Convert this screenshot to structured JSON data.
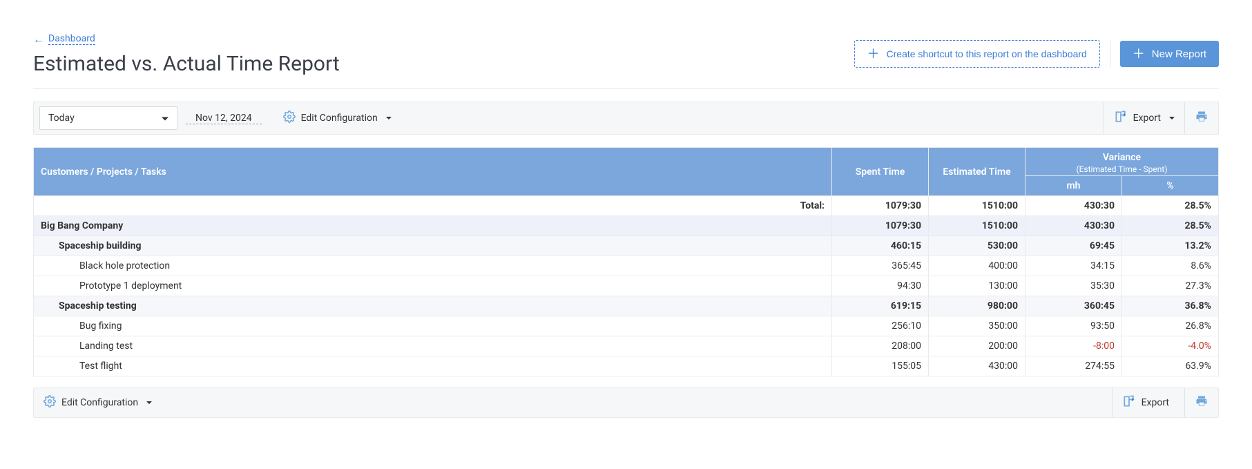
{
  "breadcrumb": {
    "label": "Dashboard"
  },
  "page_title": "Estimated vs. Actual Time Report",
  "actions": {
    "shortcut_label": "Create shortcut to this report on the dashboard",
    "new_report_label": "New Report"
  },
  "toolbar": {
    "range_selected": "Today",
    "date_label": "Nov 12, 2024",
    "edit_config_label": "Edit Configuration",
    "export_label": "Export"
  },
  "table": {
    "headers": {
      "name": "Customers / Projects / Tasks",
      "spent": "Spent Time",
      "estimated": "Estimated Time",
      "variance": "Variance",
      "variance_sub": "(Estimated Time - Spent)",
      "mh": "mh",
      "pct": "%"
    },
    "total": {
      "label": "Total:",
      "spent": "1079:30",
      "estimated": "1510:00",
      "mh": "430:30",
      "pct": "28.5%"
    },
    "rows": [
      {
        "type": "customer",
        "name": "Big Bang Company",
        "spent": "1079:30",
        "estimated": "1510:00",
        "mh": "430:30",
        "pct": "28.5%"
      },
      {
        "type": "project",
        "name": "Spaceship building",
        "spent": "460:15",
        "estimated": "530:00",
        "mh": "69:45",
        "pct": "13.2%"
      },
      {
        "type": "task",
        "name": "Black hole protection",
        "spent": "365:45",
        "estimated": "400:00",
        "mh": "34:15",
        "pct": "8.6%"
      },
      {
        "type": "task",
        "name": "Prototype 1 deployment",
        "spent": "94:30",
        "estimated": "130:00",
        "mh": "35:30",
        "pct": "27.3%"
      },
      {
        "type": "project",
        "name": "Spaceship testing",
        "spent": "619:15",
        "estimated": "980:00",
        "mh": "360:45",
        "pct": "36.8%"
      },
      {
        "type": "task",
        "name": "Bug fixing",
        "spent": "256:10",
        "estimated": "350:00",
        "mh": "93:50",
        "pct": "26.8%"
      },
      {
        "type": "task",
        "name": "Landing test",
        "spent": "208:00",
        "estimated": "200:00",
        "mh": "-8:00",
        "pct": "-4.0%",
        "negative": true
      },
      {
        "type": "task",
        "name": "Test flight",
        "spent": "155:05",
        "estimated": "430:00",
        "mh": "274:55",
        "pct": "63.9%"
      }
    ]
  },
  "colors": {
    "header_bg": "#7ba7dd",
    "primary": "#5a95d9",
    "link": "#3a7bd5",
    "customer_row_bg": "#eef1f9",
    "project_row_bg": "#f5f7fb",
    "negative": "#c0392b"
  }
}
